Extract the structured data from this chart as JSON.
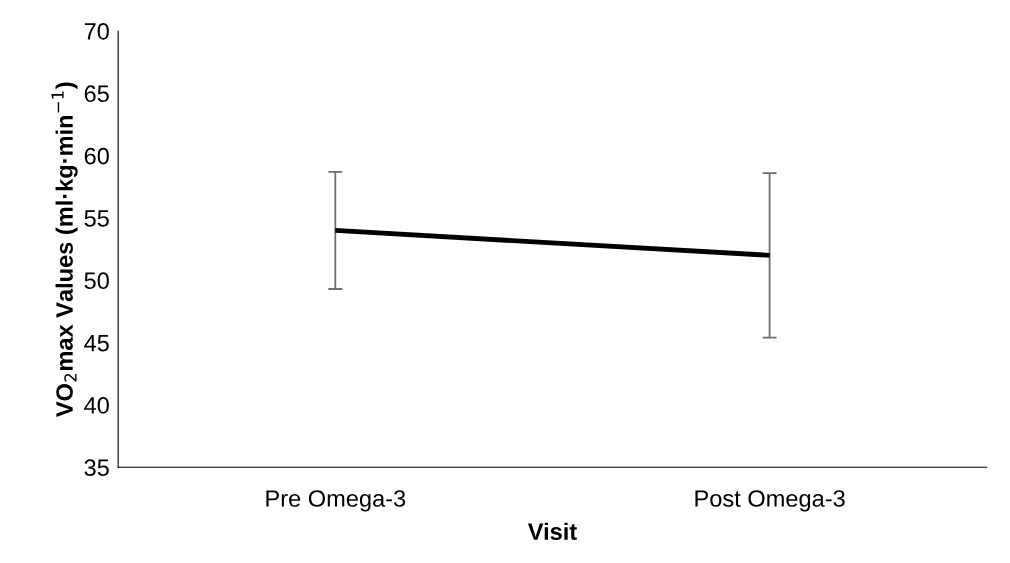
{
  "chart_data": {
    "type": "line",
    "xlabel": "Visit",
    "ylabel": "VO$_{2}$max Values (ml·kg·min$^{−1}$)",
    "categories": [
      "Pre Omega-3",
      "Post Omega-3"
    ],
    "series": [
      {
        "color": "#000000",
        "values": [
          54,
          52
        ],
        "errors": [
          4.7,
          6.6
        ]
      }
    ],
    "ylim": [
      35,
      70
    ],
    "yticks": [
      35,
      40,
      45,
      50,
      55,
      60,
      65,
      70
    ],
    "grid": false,
    "legend": false,
    "marker": "none",
    "line_style": "solid"
  }
}
